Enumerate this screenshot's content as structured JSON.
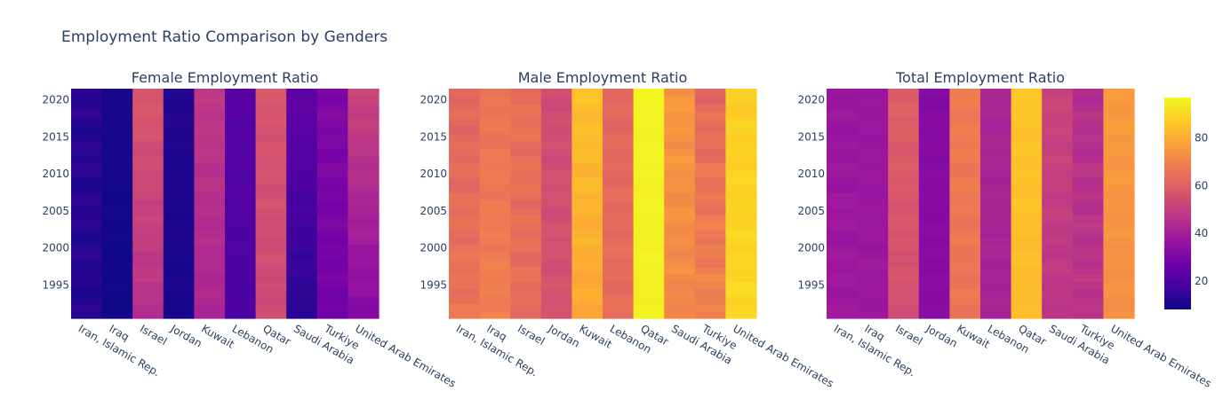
{
  "figure_title": "Employment Ratio Comparison by Genders",
  "colorscale": [
    "#0d0887",
    "#46039f",
    "#7201a8",
    "#9c179e",
    "#bd3786",
    "#d8576b",
    "#ed7953",
    "#fb9f3a",
    "#fdca26",
    "#f0f921"
  ],
  "chart_data": {
    "type": "heatmap",
    "categories": [
      "Iran, Islamic Rep.",
      "Iraq",
      "Israel",
      "Jordan",
      "Kuwait",
      "Lebanon",
      "Qatar",
      "Saudi Arabia",
      "Turkiye",
      "United Arab Emirates"
    ],
    "year_range": [
      1991,
      2021
    ],
    "y_ticks": [
      1995,
      2000,
      2005,
      2010,
      2015,
      2020
    ],
    "colorbar": {
      "range": [
        8,
        97
      ],
      "ticks": [
        20,
        40,
        60,
        80
      ]
    },
    "panels": [
      {
        "title": "Female Employment Ratio",
        "series": [
          {
            "name": "Iran, Islamic Rep.",
            "start": 12,
            "end": 13,
            "wave": 1.2
          },
          {
            "name": "Iraq",
            "start": 8.5,
            "end": 10,
            "wave": 0.4
          },
          {
            "name": "Israel",
            "start": 45,
            "end": 58,
            "wave": 1.0
          },
          {
            "name": "Jordan",
            "start": 10,
            "end": 12,
            "wave": 0.5
          },
          {
            "name": "Kuwait",
            "start": 42,
            "end": 48,
            "wave": 0.8
          },
          {
            "name": "Lebanon",
            "start": 19,
            "end": 22,
            "wave": 0.6
          },
          {
            "name": "Qatar",
            "start": 53,
            "end": 57,
            "wave": 1.0
          },
          {
            "name": "Saudi Arabia",
            "start": 13,
            "end": 24,
            "wave": 0.6
          },
          {
            "name": "Turkiye",
            "start": 28,
            "end": 31,
            "wave": 1.2
          },
          {
            "name": "United Arab Emirates",
            "start": 32,
            "end": 52,
            "wave": 1.0
          }
        ]
      },
      {
        "title": "Male Employment Ratio",
        "series": [
          {
            "name": "Iran, Islamic Rep.",
            "start": 66,
            "end": 62,
            "wave": 1.5
          },
          {
            "name": "Iraq",
            "start": 69,
            "end": 66,
            "wave": 1.0
          },
          {
            "name": "Israel",
            "start": 64,
            "end": 65,
            "wave": 1.5
          },
          {
            "name": "Jordan",
            "start": 56,
            "end": 54,
            "wave": 1.0
          },
          {
            "name": "Kuwait",
            "start": 79,
            "end": 85,
            "wave": 1.2
          },
          {
            "name": "Lebanon",
            "start": 64,
            "end": 62,
            "wave": 1.0
          },
          {
            "name": "Qatar",
            "start": 95,
            "end": 96,
            "wave": 0.5
          },
          {
            "name": "Saudi Arabia",
            "start": 71,
            "end": 75,
            "wave": 1.5
          },
          {
            "name": "Turkiye",
            "start": 70,
            "end": 63,
            "wave": 2.0
          },
          {
            "name": "United Arab Emirates",
            "start": 90,
            "end": 88,
            "wave": 1.0
          }
        ]
      },
      {
        "title": "Total Employment Ratio",
        "series": [
          {
            "name": "Iran, Islamic Rep.",
            "start": 38,
            "end": 37,
            "wave": 1.0
          },
          {
            "name": "Iraq",
            "start": 38,
            "end": 37,
            "wave": 0.6
          },
          {
            "name": "Israel",
            "start": 55,
            "end": 60,
            "wave": 1.0
          },
          {
            "name": "Jordan",
            "start": 33,
            "end": 32,
            "wave": 0.6
          },
          {
            "name": "Kuwait",
            "start": 66,
            "end": 68,
            "wave": 1.0
          },
          {
            "name": "Lebanon",
            "start": 41,
            "end": 42,
            "wave": 0.6
          },
          {
            "name": "Qatar",
            "start": 84,
            "end": 86,
            "wave": 0.6
          },
          {
            "name": "Saudi Arabia",
            "start": 47,
            "end": 52,
            "wave": 1.0
          },
          {
            "name": "Turkiye",
            "start": 47,
            "end": 45,
            "wave": 1.5
          },
          {
            "name": "United Arab Emirates",
            "start": 73,
            "end": 76,
            "wave": 0.8
          }
        ]
      }
    ]
  }
}
